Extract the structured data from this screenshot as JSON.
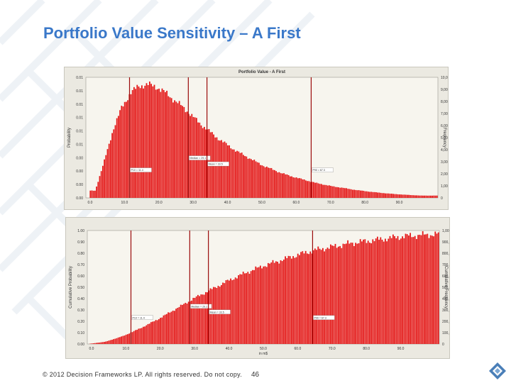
{
  "slide": {
    "title": "Portfolio Value Sensitivity – A First",
    "footer": "© 2012 Decision Frameworks LP.  All rights reserved. Do not copy.",
    "page_number": "46"
  },
  "colors": {
    "title": "#3a78c9",
    "bar": "#e41a1a",
    "marker": "#9b0b0b",
    "panel": "#ebe9e1",
    "plot": "#f7f5ee"
  },
  "chart_data": [
    {
      "type": "bar",
      "title": "Portfolio Value - A First",
      "ylabel": "Probability",
      "y2label": "Frequency",
      "xlim": [
        0,
        1000
      ],
      "x_ticks": [
        "0.0",
        "10.0",
        "20.0",
        "30.0",
        "40.0",
        "50.0",
        "60.0",
        "70.0",
        "80.0",
        "90.0"
      ],
      "y_ticks_left": [
        "0.00",
        "0.00",
        "0.00",
        "0.00",
        "0.01",
        "0.01",
        "0.01",
        "0.01",
        "0.01",
        "0.01"
      ],
      "y_ticks_right": [
        "0",
        "1,000",
        "2,000",
        "3,000",
        "4,000",
        "5,000",
        "6,000",
        "7,000",
        "8,000",
        "9,000",
        "10,000"
      ],
      "ylim": [
        0,
        10000
      ],
      "x": [
        25,
        50,
        75,
        100,
        125,
        150,
        175,
        200,
        225,
        250,
        275,
        300,
        325,
        350,
        375,
        400,
        425,
        450,
        475,
        500,
        525,
        550,
        575,
        600,
        625,
        650,
        675,
        700,
        725,
        750,
        775,
        800,
        825,
        850,
        875,
        900,
        925,
        950
      ],
      "values": [
        600,
        3000,
        5600,
        7500,
        8700,
        9300,
        9400,
        9200,
        8700,
        8100,
        7500,
        6800,
        6100,
        5500,
        4900,
        4400,
        3900,
        3500,
        3100,
        2700,
        2400,
        2100,
        1850,
        1650,
        1450,
        1250,
        1100,
        950,
        850,
        720,
        620,
        530,
        450,
        380,
        320,
        270,
        230,
        190
      ],
      "markers": [
        {
          "x": 124,
          "label": "P10 = 11.4"
        },
        {
          "x": 291,
          "label": "Median = 29.1"
        },
        {
          "x": 344,
          "label": "Mean = 33.5"
        },
        {
          "x": 640,
          "label": "P90 = 67.3"
        }
      ]
    },
    {
      "type": "area",
      "ylabel": "Cumulative Probability",
      "y2label": "Cumulative Frequency",
      "xlabel": "in m$",
      "xlim": [
        0,
        1000
      ],
      "x_ticks": [
        "0.0",
        "10.0",
        "20.0",
        "30.0",
        "40.0",
        "50.0",
        "60.0",
        "70.0",
        "80.0",
        "90.0"
      ],
      "y_ticks_left": [
        "0.00",
        "0.10",
        "0.20",
        "0.30",
        "0.40",
        "0.50",
        "0.60",
        "0.70",
        "0.80",
        "0.90",
        "1.00"
      ],
      "y_ticks_right": [
        "0",
        "100,000",
        "200,000",
        "300,000",
        "400,000",
        "500,000",
        "600,000",
        "700,000",
        "800,000",
        "900,000",
        "1,000,000"
      ],
      "ylim": [
        0,
        1
      ],
      "x": [
        0,
        50,
        100,
        150,
        200,
        250,
        300,
        350,
        400,
        450,
        500,
        550,
        600,
        650,
        700,
        750,
        800,
        850,
        900,
        950,
        1000
      ],
      "values": [
        0.0,
        0.02,
        0.07,
        0.14,
        0.22,
        0.31,
        0.4,
        0.48,
        0.56,
        0.63,
        0.69,
        0.74,
        0.79,
        0.83,
        0.86,
        0.89,
        0.91,
        0.93,
        0.95,
        0.96,
        0.97
      ],
      "markers": [
        {
          "x": 124,
          "label": "P10 = 11.4"
        },
        {
          "x": 291,
          "label": "Median = 29.1"
        },
        {
          "x": 344,
          "label": "Mean = 33.5"
        },
        {
          "x": 640,
          "label": "P90 = 67.3"
        }
      ]
    }
  ]
}
